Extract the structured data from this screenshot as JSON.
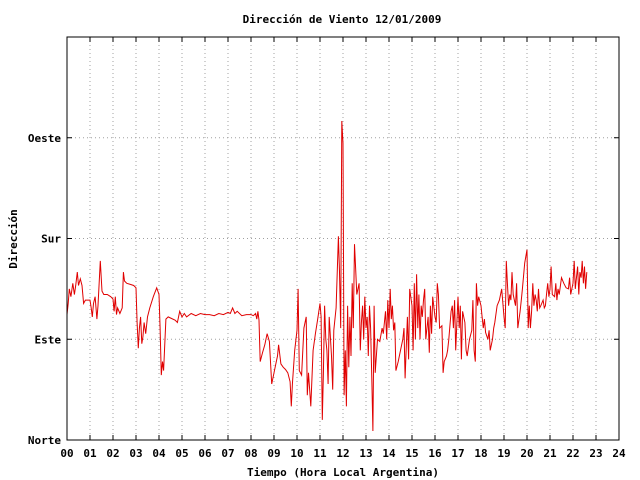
{
  "chart_data": {
    "type": "line",
    "title": "Dirección de Viento 12/01/2009",
    "xlabel": "Tiempo (Hora Local Argentina)",
    "ylabel": "Dirección",
    "xlim": [
      0,
      24
    ],
    "ylim": [
      0,
      360
    ],
    "x_ticks": [
      "00",
      "01",
      "02",
      "03",
      "04",
      "05",
      "06",
      "07",
      "08",
      "09",
      "10",
      "11",
      "12",
      "13",
      "14",
      "15",
      "16",
      "17",
      "18",
      "19",
      "20",
      "21",
      "22",
      "23",
      "24"
    ],
    "y_ticks": [
      {
        "value": 0,
        "label": "Norte"
      },
      {
        "value": 90,
        "label": "Este"
      },
      {
        "value": 180,
        "label": "Sur"
      },
      {
        "value": 270,
        "label": "Oeste"
      }
    ],
    "grid": true,
    "line_color": "#e00000",
    "series": [
      {
        "values": [
          [
            0.0,
            112
          ],
          [
            0.05,
            122
          ],
          [
            0.1,
            135
          ],
          [
            0.17,
            128
          ],
          [
            0.25,
            140
          ],
          [
            0.32,
            130
          ],
          [
            0.38,
            138
          ],
          [
            0.45,
            150
          ],
          [
            0.5,
            138
          ],
          [
            0.58,
            144
          ],
          [
            0.65,
            138
          ],
          [
            0.72,
            122
          ],
          [
            0.8,
            125
          ],
          [
            0.9,
            125
          ],
          [
            1.0,
            125
          ],
          [
            1.05,
            118
          ],
          [
            1.1,
            110
          ],
          [
            1.15,
            122
          ],
          [
            1.22,
            128
          ],
          [
            1.3,
            108
          ],
          [
            1.35,
            120
          ],
          [
            1.45,
            160
          ],
          [
            1.52,
            133
          ],
          [
            1.6,
            130
          ],
          [
            1.75,
            130
          ],
          [
            1.9,
            128
          ],
          [
            2.0,
            126
          ],
          [
            2.05,
            115
          ],
          [
            2.1,
            128
          ],
          [
            2.15,
            112
          ],
          [
            2.2,
            118
          ],
          [
            2.3,
            113
          ],
          [
            2.4,
            118
          ],
          [
            2.45,
            150
          ],
          [
            2.5,
            142
          ],
          [
            2.6,
            140
          ],
          [
            2.75,
            139
          ],
          [
            2.9,
            138
          ],
          [
            3.0,
            136
          ],
          [
            3.05,
            105
          ],
          [
            3.1,
            82
          ],
          [
            3.15,
            100
          ],
          [
            3.2,
            110
          ],
          [
            3.25,
            86
          ],
          [
            3.3,
            92
          ],
          [
            3.35,
            105
          ],
          [
            3.42,
            95
          ],
          [
            3.5,
            110
          ],
          [
            3.6,
            118
          ],
          [
            3.75,
            128
          ],
          [
            3.9,
            136
          ],
          [
            4.0,
            130
          ],
          [
            4.05,
            100
          ],
          [
            4.1,
            58
          ],
          [
            4.15,
            70
          ],
          [
            4.2,
            62
          ],
          [
            4.3,
            108
          ],
          [
            4.4,
            110
          ],
          [
            4.5,
            109
          ],
          [
            4.7,
            107
          ],
          [
            4.8,
            105
          ],
          [
            4.9,
            115
          ],
          [
            5.0,
            110
          ],
          [
            5.1,
            113
          ],
          [
            5.2,
            110
          ],
          [
            5.4,
            113
          ],
          [
            5.6,
            111
          ],
          [
            5.8,
            113
          ],
          [
            6.0,
            112
          ],
          [
            6.2,
            112
          ],
          [
            6.4,
            111
          ],
          [
            6.6,
            113
          ],
          [
            6.8,
            112
          ],
          [
            7.0,
            114
          ],
          [
            7.1,
            113
          ],
          [
            7.2,
            118
          ],
          [
            7.3,
            113
          ],
          [
            7.4,
            115
          ],
          [
            7.6,
            111
          ],
          [
            7.8,
            112
          ],
          [
            8.0,
            112
          ],
          [
            8.1,
            111
          ],
          [
            8.2,
            113
          ],
          [
            8.25,
            108
          ],
          [
            8.3,
            115
          ],
          [
            8.35,
            107
          ],
          [
            8.4,
            70
          ],
          [
            8.5,
            78
          ],
          [
            8.6,
            85
          ],
          [
            8.7,
            95
          ],
          [
            8.8,
            88
          ],
          [
            8.9,
            50
          ],
          [
            9.0,
            60
          ],
          [
            9.1,
            70
          ],
          [
            9.15,
            75
          ],
          [
            9.2,
            85
          ],
          [
            9.3,
            68
          ],
          [
            9.4,
            65
          ],
          [
            9.5,
            63
          ],
          [
            9.6,
            60
          ],
          [
            9.7,
            52
          ],
          [
            9.75,
            30
          ],
          [
            9.8,
            50
          ],
          [
            9.9,
            80
          ],
          [
            10.0,
            98
          ],
          [
            10.05,
            135
          ],
          [
            10.1,
            62
          ],
          [
            10.2,
            58
          ],
          [
            10.3,
            100
          ],
          [
            10.4,
            110
          ],
          [
            10.45,
            40
          ],
          [
            10.5,
            60
          ],
          [
            10.6,
            30
          ],
          [
            10.7,
            80
          ],
          [
            10.8,
            95
          ],
          [
            10.9,
            108
          ],
          [
            11.0,
            122
          ],
          [
            11.05,
            110
          ],
          [
            11.1,
            18
          ],
          [
            11.15,
            60
          ],
          [
            11.2,
            120
          ],
          [
            11.25,
            90
          ],
          [
            11.3,
            80
          ],
          [
            11.35,
            50
          ],
          [
            11.4,
            110
          ],
          [
            11.5,
            75
          ],
          [
            11.55,
            45
          ],
          [
            11.6,
            98
          ],
          [
            11.7,
            118
          ],
          [
            11.8,
            182
          ],
          [
            11.85,
            150
          ],
          [
            11.9,
            100
          ],
          [
            11.95,
            285
          ],
          [
            12.0,
            265
          ],
          [
            12.05,
            40
          ],
          [
            12.1,
            80
          ],
          [
            12.15,
            30
          ],
          [
            12.2,
            120
          ],
          [
            12.25,
            65
          ],
          [
            12.3,
            110
          ],
          [
            12.35,
            75
          ],
          [
            12.4,
            140
          ],
          [
            12.45,
            100
          ],
          [
            12.5,
            175
          ],
          [
            12.55,
            152
          ],
          [
            12.6,
            130
          ],
          [
            12.7,
            140
          ],
          [
            12.75,
            80
          ],
          [
            12.8,
            105
          ],
          [
            12.85,
            120
          ],
          [
            12.9,
            90
          ],
          [
            12.95,
            128
          ],
          [
            13.0,
            100
          ],
          [
            13.05,
            110
          ],
          [
            13.1,
            75
          ],
          [
            13.15,
            120
          ],
          [
            13.2,
            100
          ],
          [
            13.25,
            55
          ],
          [
            13.3,
            8
          ],
          [
            13.35,
            120
          ],
          [
            13.4,
            60
          ],
          [
            13.5,
            90
          ],
          [
            13.6,
            88
          ],
          [
            13.7,
            100
          ],
          [
            13.75,
            95
          ],
          [
            13.8,
            105
          ],
          [
            13.85,
            115
          ],
          [
            13.9,
            90
          ],
          [
            13.95,
            125
          ],
          [
            14.0,
            100
          ],
          [
            14.05,
            135
          ],
          [
            14.1,
            108
          ],
          [
            14.15,
            120
          ],
          [
            14.2,
            98
          ],
          [
            14.25,
            105
          ],
          [
            14.3,
            62
          ],
          [
            14.4,
            70
          ],
          [
            14.5,
            80
          ],
          [
            14.6,
            90
          ],
          [
            14.65,
            100
          ],
          [
            14.7,
            55
          ],
          [
            14.8,
            110
          ],
          [
            14.85,
            72
          ],
          [
            14.9,
            135
          ],
          [
            15.0,
            120
          ],
          [
            15.05,
            80
          ],
          [
            15.1,
            140
          ],
          [
            15.15,
            90
          ],
          [
            15.2,
            148
          ],
          [
            15.25,
            100
          ],
          [
            15.3,
            130
          ],
          [
            15.35,
            90
          ],
          [
            15.4,
            120
          ],
          [
            15.45,
            110
          ],
          [
            15.5,
            125
          ],
          [
            15.55,
            135
          ],
          [
            15.6,
            90
          ],
          [
            15.7,
            110
          ],
          [
            15.75,
            78
          ],
          [
            15.8,
            120
          ],
          [
            15.85,
            95
          ],
          [
            15.9,
            128
          ],
          [
            16.0,
            110
          ],
          [
            16.05,
            105
          ],
          [
            16.1,
            140
          ],
          [
            16.15,
            130
          ],
          [
            16.2,
            100
          ],
          [
            16.3,
            102
          ],
          [
            16.35,
            60
          ],
          [
            16.4,
            70
          ],
          [
            16.5,
            75
          ],
          [
            16.55,
            80
          ],
          [
            16.6,
            90
          ],
          [
            16.7,
            115
          ],
          [
            16.75,
            120
          ],
          [
            16.8,
            100
          ],
          [
            16.85,
            125
          ],
          [
            16.9,
            80
          ],
          [
            17.0,
            128
          ],
          [
            17.05,
            100
          ],
          [
            17.1,
            120
          ],
          [
            17.15,
            72
          ],
          [
            17.2,
            115
          ],
          [
            17.3,
            105
          ],
          [
            17.35,
            80
          ],
          [
            17.4,
            75
          ],
          [
            17.5,
            90
          ],
          [
            17.6,
            98
          ],
          [
            17.65,
            125
          ],
          [
            17.7,
            80
          ],
          [
            17.75,
            70
          ],
          [
            17.8,
            140
          ],
          [
            17.85,
            120
          ],
          [
            17.9,
            128
          ],
          [
            18.0,
            120
          ],
          [
            18.05,
            110
          ],
          [
            18.1,
            100
          ],
          [
            18.15,
            108
          ],
          [
            18.2,
            96
          ],
          [
            18.3,
            90
          ],
          [
            18.35,
            98
          ],
          [
            18.4,
            80
          ],
          [
            18.5,
            90
          ],
          [
            18.55,
            100
          ],
          [
            18.6,
            105
          ],
          [
            18.7,
            120
          ],
          [
            18.8,
            125
          ],
          [
            18.9,
            135
          ],
          [
            19.0,
            110
          ],
          [
            19.05,
            100
          ],
          [
            19.1,
            160
          ],
          [
            19.15,
            140
          ],
          [
            19.2,
            120
          ],
          [
            19.25,
            130
          ],
          [
            19.3,
            125
          ],
          [
            19.35,
            150
          ],
          [
            19.4,
            130
          ],
          [
            19.5,
            120
          ],
          [
            19.55,
            140
          ],
          [
            19.6,
            100
          ],
          [
            19.7,
            115
          ],
          [
            19.75,
            125
          ],
          [
            19.8,
            135
          ],
          [
            19.9,
            158
          ],
          [
            20.0,
            170
          ],
          [
            20.05,
            100
          ],
          [
            20.1,
            120
          ],
          [
            20.15,
            100
          ],
          [
            20.2,
            115
          ],
          [
            20.25,
            140
          ],
          [
            20.3,
            120
          ],
          [
            20.35,
            130
          ],
          [
            20.4,
            125
          ],
          [
            20.45,
            115
          ],
          [
            20.5,
            135
          ],
          [
            20.55,
            118
          ],
          [
            20.6,
            120
          ],
          [
            20.7,
            125
          ],
          [
            20.75,
            118
          ],
          [
            20.8,
            120
          ],
          [
            20.85,
            130
          ],
          [
            20.9,
            140
          ],
          [
            20.95,
            128
          ],
          [
            21.0,
            135
          ],
          [
            21.05,
            155
          ],
          [
            21.1,
            130
          ],
          [
            21.2,
            128
          ],
          [
            21.25,
            140
          ],
          [
            21.3,
            125
          ],
          [
            21.35,
            135
          ],
          [
            21.4,
            130
          ],
          [
            21.5,
            145
          ],
          [
            21.6,
            140
          ],
          [
            21.7,
            136
          ],
          [
            21.8,
            135
          ],
          [
            21.85,
            145
          ],
          [
            21.9,
            130
          ],
          [
            22.0,
            140
          ],
          [
            22.05,
            160
          ],
          [
            22.1,
            135
          ],
          [
            22.2,
            155
          ],
          [
            22.25,
            130
          ],
          [
            22.3,
            150
          ],
          [
            22.35,
            145
          ],
          [
            22.4,
            160
          ],
          [
            22.45,
            140
          ],
          [
            22.5,
            155
          ],
          [
            22.55,
            135
          ],
          [
            22.6,
            150
          ]
        ]
      }
    ]
  }
}
